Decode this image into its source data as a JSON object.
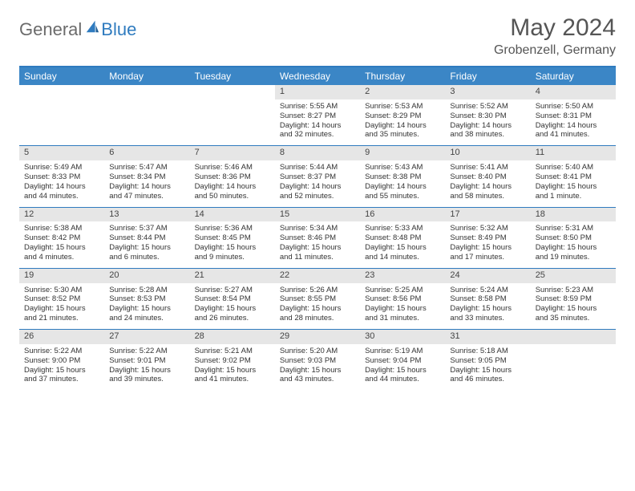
{
  "logo": {
    "part1": "General",
    "part2": "Blue"
  },
  "title": {
    "month": "May 2024",
    "location": "Grobenzell, Germany"
  },
  "colors": {
    "header_bg": "#3b86c6",
    "accent": "#2f7bbf",
    "daynum_bg": "#e6e6e6"
  },
  "weekdays": [
    "Sunday",
    "Monday",
    "Tuesday",
    "Wednesday",
    "Thursday",
    "Friday",
    "Saturday"
  ],
  "weeks": [
    [
      null,
      null,
      null,
      {
        "n": "1",
        "sr": "5:55 AM",
        "ss": "8:27 PM",
        "dl": "14 hours and 32 minutes."
      },
      {
        "n": "2",
        "sr": "5:53 AM",
        "ss": "8:29 PM",
        "dl": "14 hours and 35 minutes."
      },
      {
        "n": "3",
        "sr": "5:52 AM",
        "ss": "8:30 PM",
        "dl": "14 hours and 38 minutes."
      },
      {
        "n": "4",
        "sr": "5:50 AM",
        "ss": "8:31 PM",
        "dl": "14 hours and 41 minutes."
      }
    ],
    [
      {
        "n": "5",
        "sr": "5:49 AM",
        "ss": "8:33 PM",
        "dl": "14 hours and 44 minutes."
      },
      {
        "n": "6",
        "sr": "5:47 AM",
        "ss": "8:34 PM",
        "dl": "14 hours and 47 minutes."
      },
      {
        "n": "7",
        "sr": "5:46 AM",
        "ss": "8:36 PM",
        "dl": "14 hours and 50 minutes."
      },
      {
        "n": "8",
        "sr": "5:44 AM",
        "ss": "8:37 PM",
        "dl": "14 hours and 52 minutes."
      },
      {
        "n": "9",
        "sr": "5:43 AM",
        "ss": "8:38 PM",
        "dl": "14 hours and 55 minutes."
      },
      {
        "n": "10",
        "sr": "5:41 AM",
        "ss": "8:40 PM",
        "dl": "14 hours and 58 minutes."
      },
      {
        "n": "11",
        "sr": "5:40 AM",
        "ss": "8:41 PM",
        "dl": "15 hours and 1 minute."
      }
    ],
    [
      {
        "n": "12",
        "sr": "5:38 AM",
        "ss": "8:42 PM",
        "dl": "15 hours and 4 minutes."
      },
      {
        "n": "13",
        "sr": "5:37 AM",
        "ss": "8:44 PM",
        "dl": "15 hours and 6 minutes."
      },
      {
        "n": "14",
        "sr": "5:36 AM",
        "ss": "8:45 PM",
        "dl": "15 hours and 9 minutes."
      },
      {
        "n": "15",
        "sr": "5:34 AM",
        "ss": "8:46 PM",
        "dl": "15 hours and 11 minutes."
      },
      {
        "n": "16",
        "sr": "5:33 AM",
        "ss": "8:48 PM",
        "dl": "15 hours and 14 minutes."
      },
      {
        "n": "17",
        "sr": "5:32 AM",
        "ss": "8:49 PM",
        "dl": "15 hours and 17 minutes."
      },
      {
        "n": "18",
        "sr": "5:31 AM",
        "ss": "8:50 PM",
        "dl": "15 hours and 19 minutes."
      }
    ],
    [
      {
        "n": "19",
        "sr": "5:30 AM",
        "ss": "8:52 PM",
        "dl": "15 hours and 21 minutes."
      },
      {
        "n": "20",
        "sr": "5:28 AM",
        "ss": "8:53 PM",
        "dl": "15 hours and 24 minutes."
      },
      {
        "n": "21",
        "sr": "5:27 AM",
        "ss": "8:54 PM",
        "dl": "15 hours and 26 minutes."
      },
      {
        "n": "22",
        "sr": "5:26 AM",
        "ss": "8:55 PM",
        "dl": "15 hours and 28 minutes."
      },
      {
        "n": "23",
        "sr": "5:25 AM",
        "ss": "8:56 PM",
        "dl": "15 hours and 31 minutes."
      },
      {
        "n": "24",
        "sr": "5:24 AM",
        "ss": "8:58 PM",
        "dl": "15 hours and 33 minutes."
      },
      {
        "n": "25",
        "sr": "5:23 AM",
        "ss": "8:59 PM",
        "dl": "15 hours and 35 minutes."
      }
    ],
    [
      {
        "n": "26",
        "sr": "5:22 AM",
        "ss": "9:00 PM",
        "dl": "15 hours and 37 minutes."
      },
      {
        "n": "27",
        "sr": "5:22 AM",
        "ss": "9:01 PM",
        "dl": "15 hours and 39 minutes."
      },
      {
        "n": "28",
        "sr": "5:21 AM",
        "ss": "9:02 PM",
        "dl": "15 hours and 41 minutes."
      },
      {
        "n": "29",
        "sr": "5:20 AM",
        "ss": "9:03 PM",
        "dl": "15 hours and 43 minutes."
      },
      {
        "n": "30",
        "sr": "5:19 AM",
        "ss": "9:04 PM",
        "dl": "15 hours and 44 minutes."
      },
      {
        "n": "31",
        "sr": "5:18 AM",
        "ss": "9:05 PM",
        "dl": "15 hours and 46 minutes."
      },
      null
    ]
  ],
  "labels": {
    "sunrise": "Sunrise: ",
    "sunset": "Sunset: ",
    "daylight": "Daylight: "
  }
}
